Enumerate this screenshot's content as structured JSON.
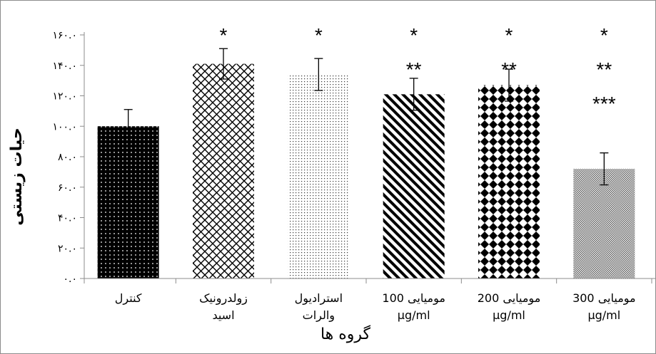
{
  "chart_data": {
    "type": "bar",
    "title": "",
    "xlabel": "گروه ها",
    "ylabel": "حیات زیستی",
    "ylim": [
      0,
      160
    ],
    "yticks": [
      0,
      20,
      40,
      60,
      80,
      100,
      120,
      140,
      160
    ],
    "ytick_labels": [
      "۰.۰",
      "۲۰.۰",
      "۴۰.۰",
      "۶۰.۰",
      "۸۰.۰",
      "۱۰۰.۰",
      "۱۲۰.۰",
      "۱۴۰.۰",
      "۱۶۰.۰"
    ],
    "categories": [
      [
        "کنترل"
      ],
      [
        "زولدرونیک",
        "اسید"
      ],
      [
        "استرادیول",
        "والرات"
      ],
      [
        "مومیایی 100",
        "μg/ml"
      ],
      [
        "مومیایی 200",
        "μg/ml"
      ],
      [
        "مومیایی 300",
        "μg/ml"
      ]
    ],
    "values": [
      100,
      141,
      134,
      121,
      127,
      72
    ],
    "errors": [
      11,
      10,
      10.5,
      10.5,
      10.5,
      10.5
    ],
    "patterns": [
      "dots-on-black",
      "crosshatch",
      "fine-dots",
      "diagonal-stripes",
      "diamonds",
      "fine-checker"
    ],
    "significance": [
      [],
      [
        "*"
      ],
      [
        "*"
      ],
      [
        "*",
        "**"
      ],
      [
        "*",
        "**"
      ],
      [
        "*",
        "**",
        "***"
      ]
    ],
    "grid": false,
    "legend": "none"
  }
}
